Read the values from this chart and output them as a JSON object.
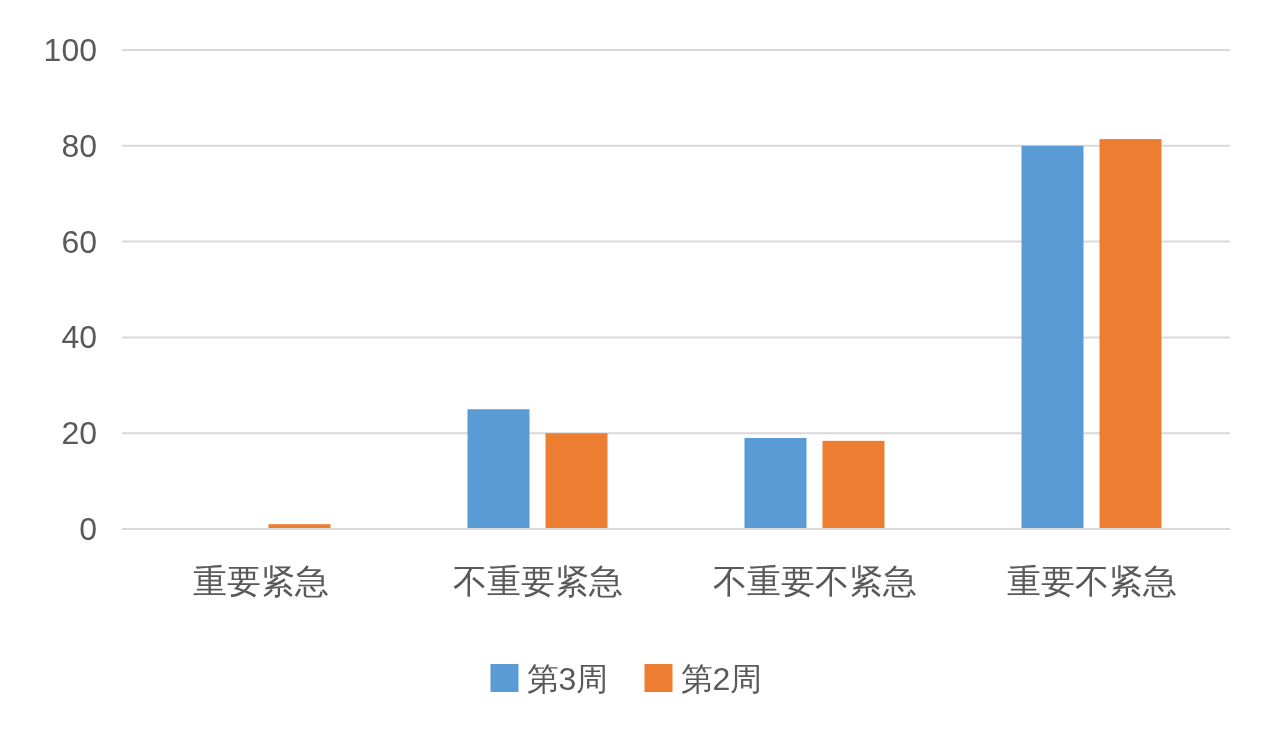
{
  "chart_data": {
    "type": "bar",
    "categories": [
      "重要紧急",
      "不重要紧急",
      "不重要不紧急",
      "重要不紧急"
    ],
    "series": [
      {
        "name": "第3周",
        "color": "#5b9bd5",
        "values": [
          0,
          25,
          19,
          80
        ]
      },
      {
        "name": "第2周",
        "color": "#ed7d31",
        "values": [
          1,
          20,
          18.4,
          81.4
        ]
      }
    ],
    "ylim": [
      0,
      100
    ],
    "yticks": [
      0,
      20,
      40,
      60,
      80,
      100
    ],
    "grid": "y",
    "legend": "bottom"
  }
}
